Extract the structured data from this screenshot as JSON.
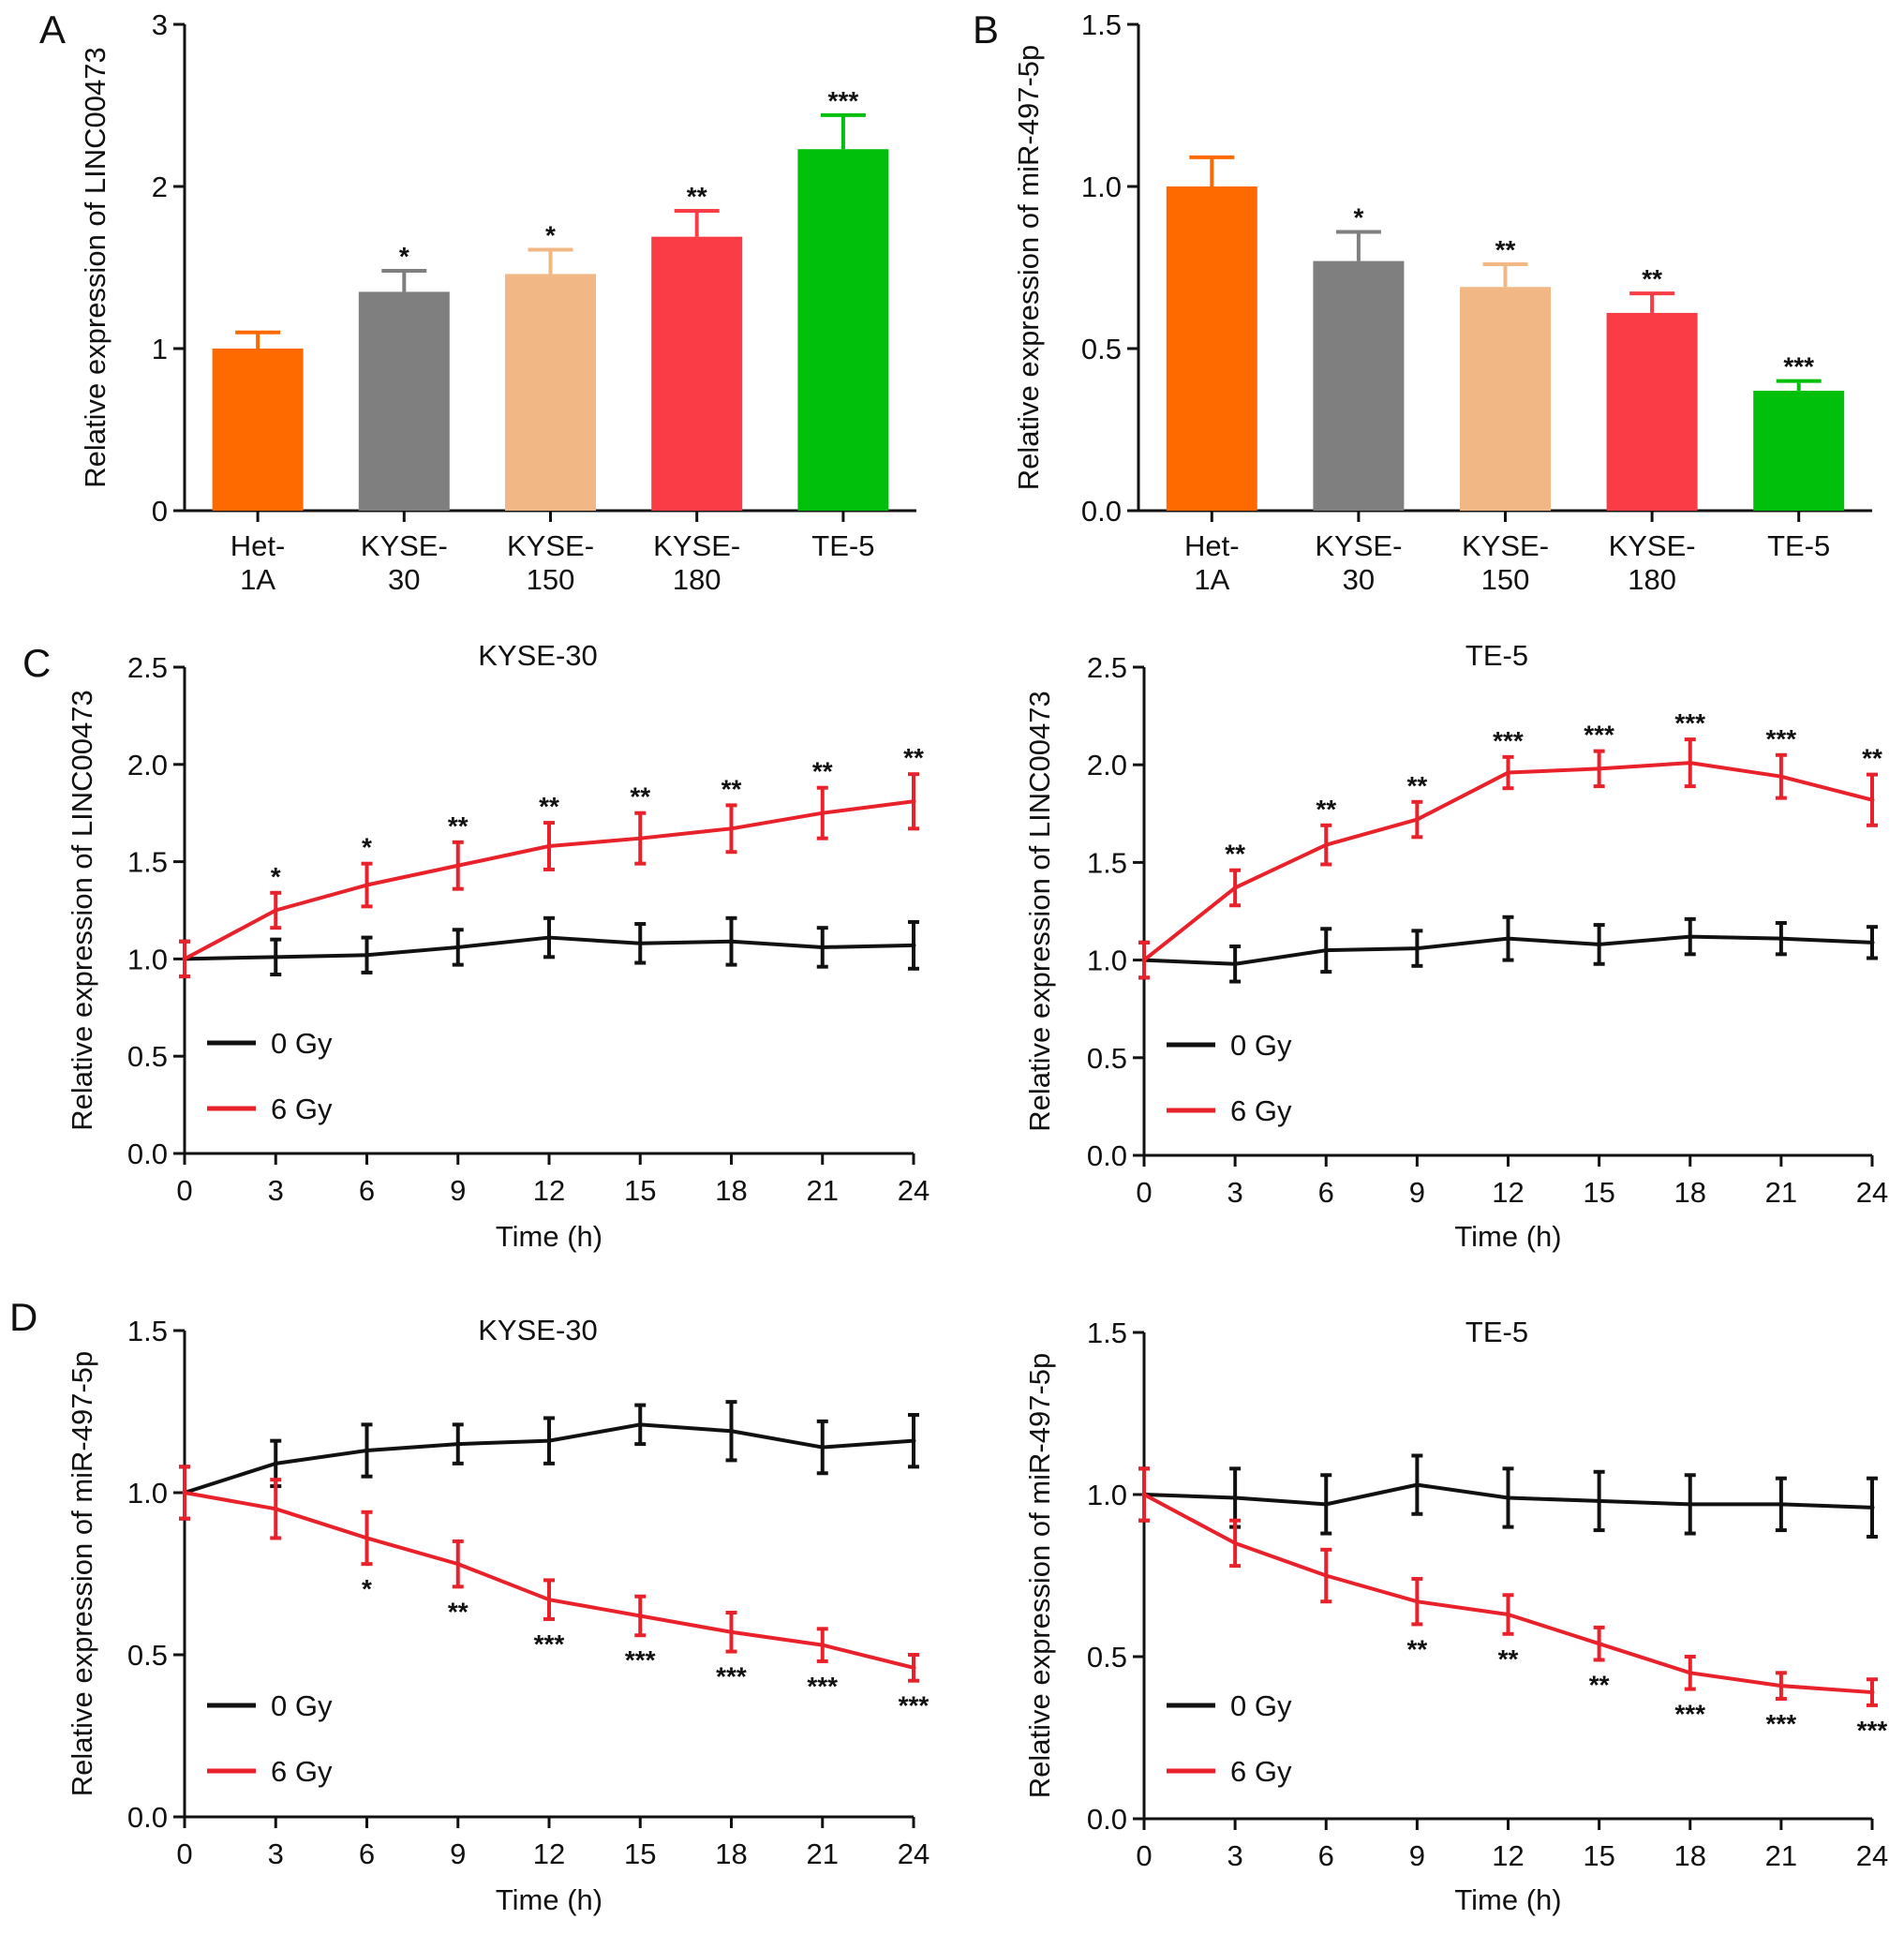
{
  "figure_labels": [
    "A",
    "B",
    "C",
    "D"
  ],
  "chart_data": [
    {
      "id": "A",
      "type": "bar",
      "title": "",
      "ylabel": "Relative expression of LINC00473",
      "xlabel": "",
      "ylim": [
        0,
        3
      ],
      "yticks": [
        "0",
        "1",
        "2",
        "3"
      ],
      "categories": [
        [
          "Het-",
          "1A"
        ],
        [
          "KYSE-",
          "30"
        ],
        [
          "KYSE-",
          "150"
        ],
        [
          "KYSE-",
          "180"
        ],
        [
          "TE-5"
        ]
      ],
      "values": [
        1.0,
        1.35,
        1.46,
        1.69,
        2.23
      ],
      "errors": [
        0.1,
        0.13,
        0.15,
        0.16,
        0.21
      ],
      "significance": [
        "",
        "*",
        "*",
        "**",
        "***"
      ],
      "colors": [
        "#ff6a00",
        "#7f7f7f",
        "#f1b885",
        "#fa3c46",
        "#00c00c"
      ]
    },
    {
      "id": "B",
      "type": "bar",
      "title": "",
      "ylabel": "Relative expression of miR-497-5p",
      "xlabel": "",
      "ylim": [
        0,
        1.5
      ],
      "yticks": [
        "0.0",
        "0.5",
        "1.0",
        "1.5"
      ],
      "categories": [
        [
          "Het-",
          "1A"
        ],
        [
          "KYSE-",
          "30"
        ],
        [
          "KYSE-",
          "150"
        ],
        [
          "KYSE-",
          "180"
        ],
        [
          "TE-5"
        ]
      ],
      "values": [
        1.0,
        0.77,
        0.69,
        0.61,
        0.37
      ],
      "errors": [
        0.09,
        0.09,
        0.07,
        0.06,
        0.03
      ],
      "significance": [
        "",
        "*",
        "**",
        "**",
        "***"
      ],
      "colors": [
        "#ff6a00",
        "#7f7f7f",
        "#f1b885",
        "#fa3c46",
        "#00c00c"
      ]
    },
    {
      "id": "C-left",
      "type": "line",
      "title": "KYSE-30",
      "ylabel": "Relative expression of LINC00473",
      "xlabel": "Time (h)",
      "ylim": [
        0,
        2.5
      ],
      "yticks": [
        "0.0",
        "0.5",
        "1.0",
        "1.5",
        "2.0",
        "2.5"
      ],
      "x": [
        0,
        3,
        6,
        9,
        12,
        15,
        18,
        21,
        24
      ],
      "xticks": [
        "0",
        "3",
        "6",
        "9",
        "12",
        "15",
        "18",
        "21",
        "24"
      ],
      "significance_position": "above",
      "series": [
        {
          "name": "0 Gy",
          "color": "#111111",
          "values": [
            1.0,
            1.01,
            1.02,
            1.06,
            1.11,
            1.08,
            1.09,
            1.06,
            1.07
          ],
          "errors": [
            0.09,
            0.09,
            0.09,
            0.09,
            0.1,
            0.1,
            0.12,
            0.1,
            0.12
          ]
        },
        {
          "name": "6 Gy",
          "color": "#e8212a",
          "values": [
            1.0,
            1.25,
            1.38,
            1.48,
            1.58,
            1.62,
            1.67,
            1.75,
            1.81
          ],
          "errors": [
            0.09,
            0.09,
            0.11,
            0.12,
            0.12,
            0.13,
            0.12,
            0.13,
            0.14
          ],
          "significance": [
            "",
            "*",
            "*",
            "**",
            "**",
            "**",
            "**",
            "**",
            "**"
          ]
        }
      ]
    },
    {
      "id": "C-right",
      "type": "line",
      "title": "TE-5",
      "ylabel": "Relative expression of LINC00473",
      "xlabel": "Time (h)",
      "ylim": [
        0,
        2.5
      ],
      "yticks": [
        "0.0",
        "0.5",
        "1.0",
        "1.5",
        "2.0",
        "2.5"
      ],
      "x": [
        0,
        3,
        6,
        9,
        12,
        15,
        18,
        21,
        24
      ],
      "xticks": [
        "0",
        "3",
        "6",
        "9",
        "12",
        "15",
        "18",
        "21",
        "24"
      ],
      "significance_position": "above",
      "series": [
        {
          "name": "0 Gy",
          "color": "#111111",
          "values": [
            1.0,
            0.98,
            1.05,
            1.06,
            1.11,
            1.08,
            1.12,
            1.11,
            1.09
          ],
          "errors": [
            0.09,
            0.09,
            0.11,
            0.09,
            0.11,
            0.1,
            0.09,
            0.08,
            0.08
          ]
        },
        {
          "name": "6 Gy",
          "color": "#e8212a",
          "values": [
            1.0,
            1.37,
            1.59,
            1.72,
            1.96,
            1.98,
            2.01,
            1.94,
            1.82
          ],
          "errors": [
            0.09,
            0.09,
            0.1,
            0.09,
            0.08,
            0.09,
            0.12,
            0.11,
            0.13
          ],
          "significance": [
            "",
            "**",
            "**",
            "**",
            "***",
            "***",
            "***",
            "***",
            "**"
          ]
        }
      ]
    },
    {
      "id": "D-left",
      "type": "line",
      "title": "KYSE-30",
      "ylabel": "Relative expression of miR-497-5p",
      "xlabel": "Time (h)",
      "ylim": [
        0,
        1.5
      ],
      "yticks": [
        "0.0",
        "0.5",
        "1.0",
        "1.5"
      ],
      "x": [
        0,
        3,
        6,
        9,
        12,
        15,
        18,
        21,
        24
      ],
      "xticks": [
        "0",
        "3",
        "6",
        "9",
        "12",
        "15",
        "18",
        "21",
        "24"
      ],
      "significance_position": "below",
      "series": [
        {
          "name": "0 Gy",
          "color": "#111111",
          "values": [
            1.0,
            1.09,
            1.13,
            1.15,
            1.16,
            1.21,
            1.19,
            1.14,
            1.16
          ],
          "errors": [
            0.08,
            0.07,
            0.08,
            0.06,
            0.07,
            0.06,
            0.09,
            0.08,
            0.08
          ]
        },
        {
          "name": "6 Gy",
          "color": "#e8212a",
          "values": [
            1.0,
            0.95,
            0.86,
            0.78,
            0.67,
            0.62,
            0.57,
            0.53,
            0.46
          ],
          "errors": [
            0.08,
            0.09,
            0.08,
            0.07,
            0.06,
            0.06,
            0.06,
            0.05,
            0.04
          ],
          "significance": [
            "",
            "",
            "*",
            "**",
            "***",
            "***",
            "***",
            "***",
            "***"
          ]
        }
      ]
    },
    {
      "id": "D-right",
      "type": "line",
      "title": "TE-5",
      "ylabel": "Relative expression of miR-497-5p",
      "xlabel": "Time (h)",
      "ylim": [
        0,
        1.5
      ],
      "yticks": [
        "0.0",
        "0.5",
        "1.0",
        "1.5"
      ],
      "x": [
        0,
        3,
        6,
        9,
        12,
        15,
        18,
        21,
        24
      ],
      "xticks": [
        "0",
        "3",
        "6",
        "9",
        "12",
        "15",
        "18",
        "21",
        "24"
      ],
      "significance_position": "below",
      "series": [
        {
          "name": "0 Gy",
          "color": "#111111",
          "values": [
            1.0,
            0.99,
            0.97,
            1.03,
            0.99,
            0.98,
            0.97,
            0.97,
            0.96
          ],
          "errors": [
            0.08,
            0.09,
            0.09,
            0.09,
            0.09,
            0.09,
            0.09,
            0.08,
            0.09
          ]
        },
        {
          "name": "6 Gy",
          "color": "#e8212a",
          "values": [
            1.0,
            0.85,
            0.75,
            0.67,
            0.63,
            0.54,
            0.45,
            0.41,
            0.39
          ],
          "errors": [
            0.08,
            0.07,
            0.08,
            0.07,
            0.06,
            0.05,
            0.05,
            0.04,
            0.04
          ],
          "significance": [
            "",
            "",
            "",
            "**",
            "**",
            "**",
            "***",
            "***",
            "***"
          ]
        }
      ]
    }
  ]
}
